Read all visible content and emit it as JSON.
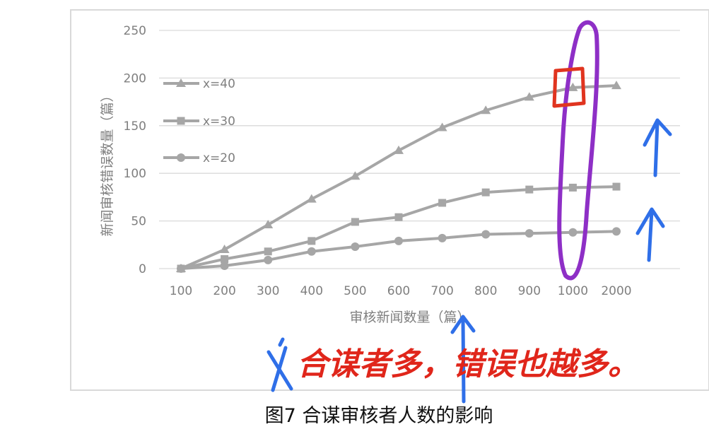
{
  "chart_data": {
    "type": "line",
    "categories": [
      "100",
      "200",
      "300",
      "400",
      "500",
      "600",
      "700",
      "800",
      "900",
      "1000",
      "2000"
    ],
    "series": [
      {
        "name": "x=40",
        "marker": "triangle",
        "values": [
          0,
          20,
          46,
          73,
          97,
          124,
          148,
          166,
          180,
          190,
          192
        ]
      },
      {
        "name": "x=30",
        "marker": "square",
        "values": [
          0,
          10,
          18,
          29,
          49,
          54,
          69,
          80,
          83,
          85,
          86
        ]
      },
      {
        "name": "x=20",
        "marker": "circle",
        "values": [
          0,
          3,
          9,
          18,
          23,
          29,
          32,
          36,
          37,
          38,
          39
        ]
      }
    ],
    "xlabel": "审核新闻数量（篇）",
    "ylabel": "新闻审核错误数量（篇）",
    "ylim": [
      0,
      250
    ],
    "yticks": [
      0,
      50,
      100,
      150,
      200,
      250
    ],
    "grid": true,
    "legend_placement": "left",
    "line_color": "#a6a6a6"
  },
  "caption": "图7   合谋审核者人数的影响",
  "annotation": {
    "text": "合谋者多，错误也越多。",
    "color": "#e0261b",
    "highlight_color": "#8e2fc6",
    "arrow_color": "#2f6fe8"
  }
}
